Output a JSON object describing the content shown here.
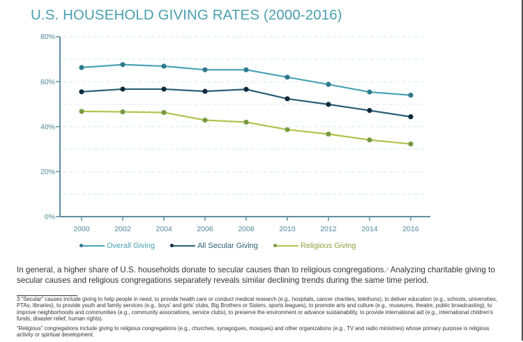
{
  "title": "U.S. HOUSEHOLD GIVING RATES (2000-2016)",
  "colors": {
    "title": "#4a9fae",
    "axis": "#5e8e9c",
    "grid": "#d6e6ea",
    "overall_line": "#4aa3b5",
    "overall_marker": "#2f7a8c",
    "secular_line": "#2b5f75",
    "secular_marker": "#0f2b3d",
    "religious_line": "#b3c24c",
    "religious_marker": "#789a45"
  },
  "chart_data": {
    "type": "line",
    "title": "U.S. HOUSEHOLD GIVING RATES (2000-2016)",
    "xlabel": "",
    "ylabel": "",
    "x": [
      "2000",
      "2002",
      "2004",
      "2006",
      "2008",
      "2010",
      "2012",
      "2014",
      "2016"
    ],
    "ylim": [
      0,
      80
    ],
    "yticks": [
      0,
      20,
      40,
      60,
      80
    ],
    "ytick_labels": [
      "0%",
      "20%",
      "40%",
      "60%",
      "80%"
    ],
    "grid": "horizontal dashed every 10%",
    "legend_position": "bottom",
    "series": [
      {
        "name": "Overall Giving",
        "key": "overall",
        "values": [
          66.3,
          67.6,
          66.9,
          65.3,
          65.3,
          62.0,
          58.8,
          55.4,
          54.0
        ]
      },
      {
        "name": "All Secular Giving",
        "key": "secular",
        "values": [
          55.5,
          56.7,
          56.7,
          55.7,
          56.6,
          52.4,
          49.9,
          47.2,
          44.4
        ]
      },
      {
        "name": "Religious Giving",
        "key": "religious",
        "values": [
          46.8,
          46.6,
          46.3,
          42.9,
          42.0,
          38.7,
          36.7,
          34.1,
          32.3
        ]
      }
    ]
  },
  "legend": [
    {
      "label": "Overall Giving"
    },
    {
      "label": "All Secular Giving"
    },
    {
      "label": "Religious Giving"
    }
  ],
  "paragraph": {
    "text_before": "In general, a higher share of U.S. households donate to secular causes than to religious congregations.",
    "footnote_ref": "3",
    "text_after": " Analyzing charitable giving to secular causes and religious congregations separately reveals similar declining trends during the same time period."
  },
  "footnotes": [
    "3 “Secular” causes include giving to help people in need, to provide health care or conduct medical research (e.g., hospitals, cancer charities, telethons), to deliver education (e.g., schools, universities, PTAs, libraries), to provide youth and family services (e.g., boys' and girls' clubs, Big Brothers or Sisters, sports leagues), to promote arts and culture (e.g., museums, theatre, public broadcasting), to improve neighborhoods and communities (e.g., community associations, service clubs), to preserve the environment or advance sustainability, to provide international aid (e.g., international children's funds, disaster relief, human rights).",
    "“Religious” congregations include giving to religious congregations (e.g., churches, synagogues, mosques) and other organizations (e.g., TV and radio ministries) whose primary purpose is religious activity or spiritual development."
  ]
}
